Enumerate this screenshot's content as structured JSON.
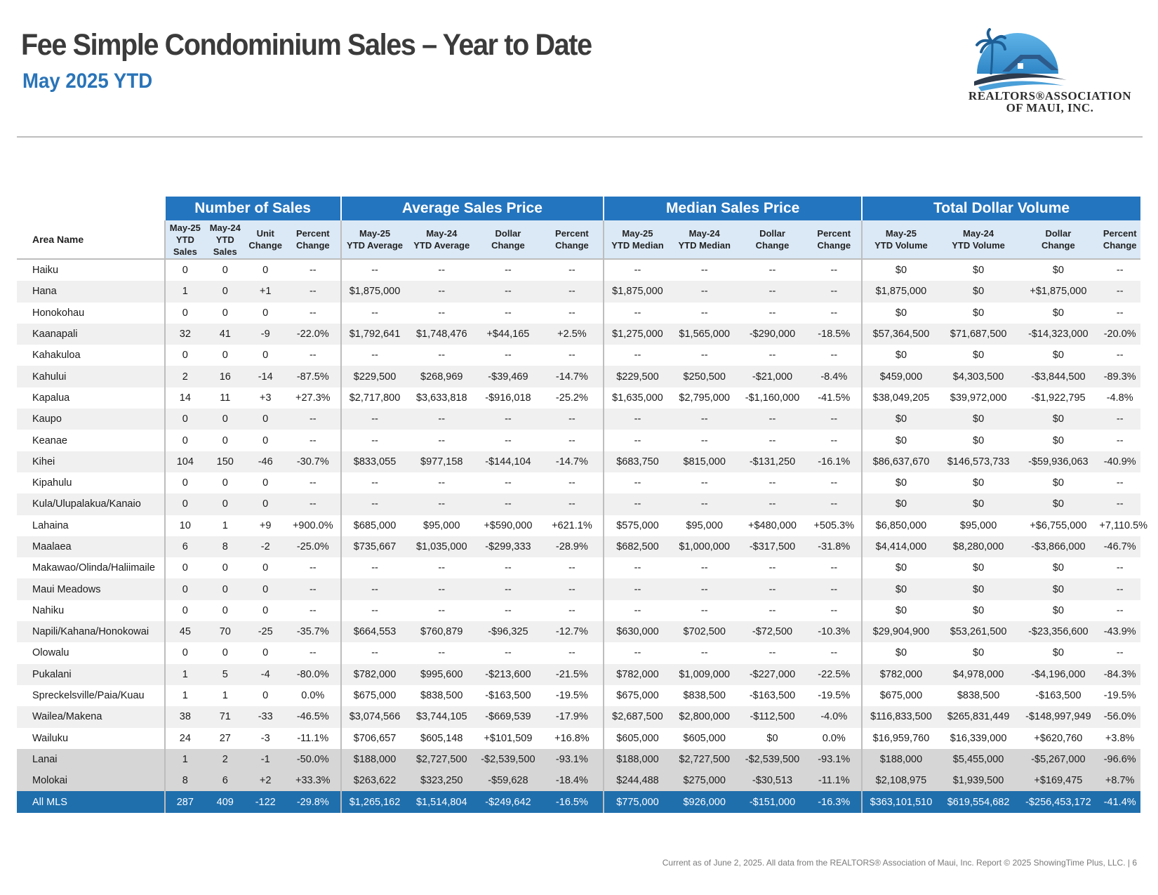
{
  "header": {
    "title": "Fee Simple Condominium Sales – Year to Date",
    "subtitle": "May 2025 YTD"
  },
  "logo": {
    "line1": "REALTORS®ASSOCIATION",
    "line2": "OF MAUI, INC.",
    "colors": {
      "sky": "#4a9fd8",
      "roof": "#2c5b8c",
      "palm": "#1d5f96"
    }
  },
  "table": {
    "groups": [
      "Number of Sales",
      "Average Sales Price",
      "Median Sales Price",
      "Total Dollar Volume"
    ],
    "area_header": "Area Name",
    "columns": [
      "May-25 YTD Sales",
      "May-24 YTD Sales",
      "Unit Change",
      "Percent Change",
      "May-25 YTD Average",
      "May-24 YTD Average",
      "Dollar Change",
      "Percent Change",
      "May-25 YTD Median",
      "May-24 YTD Median",
      "Dollar Change",
      "Percent Change",
      "May-25 YTD Volume",
      "May-24 YTD Volume",
      "Dollar Change",
      "Percent Change"
    ],
    "rows": [
      [
        "Haiku",
        "0",
        "0",
        "0",
        "--",
        "--",
        "--",
        "--",
        "--",
        "--",
        "--",
        "--",
        "--",
        "$0",
        "$0",
        "$0",
        "--"
      ],
      [
        "Hana",
        "1",
        "0",
        "+1",
        "--",
        "$1,875,000",
        "--",
        "--",
        "--",
        "$1,875,000",
        "--",
        "--",
        "--",
        "$1,875,000",
        "$0",
        "+$1,875,000",
        "--"
      ],
      [
        "Honokohau",
        "0",
        "0",
        "0",
        "--",
        "--",
        "--",
        "--",
        "--",
        "--",
        "--",
        "--",
        "--",
        "$0",
        "$0",
        "$0",
        "--"
      ],
      [
        "Kaanapali",
        "32",
        "41",
        "-9",
        "-22.0%",
        "$1,792,641",
        "$1,748,476",
        "+$44,165",
        "+2.5%",
        "$1,275,000",
        "$1,565,000",
        "-$290,000",
        "-18.5%",
        "$57,364,500",
        "$71,687,500",
        "-$14,323,000",
        "-20.0%"
      ],
      [
        "Kahakuloa",
        "0",
        "0",
        "0",
        "--",
        "--",
        "--",
        "--",
        "--",
        "--",
        "--",
        "--",
        "--",
        "$0",
        "$0",
        "$0",
        "--"
      ],
      [
        "Kahului",
        "2",
        "16",
        "-14",
        "-87.5%",
        "$229,500",
        "$268,969",
        "-$39,469",
        "-14.7%",
        "$229,500",
        "$250,500",
        "-$21,000",
        "-8.4%",
        "$459,000",
        "$4,303,500",
        "-$3,844,500",
        "-89.3%"
      ],
      [
        "Kapalua",
        "14",
        "11",
        "+3",
        "+27.3%",
        "$2,717,800",
        "$3,633,818",
        "-$916,018",
        "-25.2%",
        "$1,635,000",
        "$2,795,000",
        "-$1,160,000",
        "-41.5%",
        "$38,049,205",
        "$39,972,000",
        "-$1,922,795",
        "-4.8%"
      ],
      [
        "Kaupo",
        "0",
        "0",
        "0",
        "--",
        "--",
        "--",
        "--",
        "--",
        "--",
        "--",
        "--",
        "--",
        "$0",
        "$0",
        "$0",
        "--"
      ],
      [
        "Keanae",
        "0",
        "0",
        "0",
        "--",
        "--",
        "--",
        "--",
        "--",
        "--",
        "--",
        "--",
        "--",
        "$0",
        "$0",
        "$0",
        "--"
      ],
      [
        "Kihei",
        "104",
        "150",
        "-46",
        "-30.7%",
        "$833,055",
        "$977,158",
        "-$144,104",
        "-14.7%",
        "$683,750",
        "$815,000",
        "-$131,250",
        "-16.1%",
        "$86,637,670",
        "$146,573,733",
        "-$59,936,063",
        "-40.9%"
      ],
      [
        "Kipahulu",
        "0",
        "0",
        "0",
        "--",
        "--",
        "--",
        "--",
        "--",
        "--",
        "--",
        "--",
        "--",
        "$0",
        "$0",
        "$0",
        "--"
      ],
      [
        "Kula/Ulupalakua/Kanaio",
        "0",
        "0",
        "0",
        "--",
        "--",
        "--",
        "--",
        "--",
        "--",
        "--",
        "--",
        "--",
        "$0",
        "$0",
        "$0",
        "--"
      ],
      [
        "Lahaina",
        "10",
        "1",
        "+9",
        "+900.0%",
        "$685,000",
        "$95,000",
        "+$590,000",
        "+621.1%",
        "$575,000",
        "$95,000",
        "+$480,000",
        "+505.3%",
        "$6,850,000",
        "$95,000",
        "+$6,755,000",
        "+7,110.5%"
      ],
      [
        "Maalaea",
        "6",
        "8",
        "-2",
        "-25.0%",
        "$735,667",
        "$1,035,000",
        "-$299,333",
        "-28.9%",
        "$682,500",
        "$1,000,000",
        "-$317,500",
        "-31.8%",
        "$4,414,000",
        "$8,280,000",
        "-$3,866,000",
        "-46.7%"
      ],
      [
        "Makawao/Olinda/Haliimaile",
        "0",
        "0",
        "0",
        "--",
        "--",
        "--",
        "--",
        "--",
        "--",
        "--",
        "--",
        "--",
        "$0",
        "$0",
        "$0",
        "--"
      ],
      [
        "Maui Meadows",
        "0",
        "0",
        "0",
        "--",
        "--",
        "--",
        "--",
        "--",
        "--",
        "--",
        "--",
        "--",
        "$0",
        "$0",
        "$0",
        "--"
      ],
      [
        "Nahiku",
        "0",
        "0",
        "0",
        "--",
        "--",
        "--",
        "--",
        "--",
        "--",
        "--",
        "--",
        "--",
        "$0",
        "$0",
        "$0",
        "--"
      ],
      [
        "Napili/Kahana/Honokowai",
        "45",
        "70",
        "-25",
        "-35.7%",
        "$664,553",
        "$760,879",
        "-$96,325",
        "-12.7%",
        "$630,000",
        "$702,500",
        "-$72,500",
        "-10.3%",
        "$29,904,900",
        "$53,261,500",
        "-$23,356,600",
        "-43.9%"
      ],
      [
        "Olowalu",
        "0",
        "0",
        "0",
        "--",
        "--",
        "--",
        "--",
        "--",
        "--",
        "--",
        "--",
        "--",
        "$0",
        "$0",
        "$0",
        "--"
      ],
      [
        "Pukalani",
        "1",
        "5",
        "-4",
        "-80.0%",
        "$782,000",
        "$995,600",
        "-$213,600",
        "-21.5%",
        "$782,000",
        "$1,009,000",
        "-$227,000",
        "-22.5%",
        "$782,000",
        "$4,978,000",
        "-$4,196,000",
        "-84.3%"
      ],
      [
        "Spreckelsville/Paia/Kuau",
        "1",
        "1",
        "0",
        "0.0%",
        "$675,000",
        "$838,500",
        "-$163,500",
        "-19.5%",
        "$675,000",
        "$838,500",
        "-$163,500",
        "-19.5%",
        "$675,000",
        "$838,500",
        "-$163,500",
        "-19.5%"
      ],
      [
        "Wailea/Makena",
        "38",
        "71",
        "-33",
        "-46.5%",
        "$3,074,566",
        "$3,744,105",
        "-$669,539",
        "-17.9%",
        "$2,687,500",
        "$2,800,000",
        "-$112,500",
        "-4.0%",
        "$116,833,500",
        "$265,831,449",
        "-$148,997,949",
        "-56.0%"
      ],
      [
        "Wailuku",
        "24",
        "27",
        "-3",
        "-11.1%",
        "$706,657",
        "$605,148",
        "+$101,509",
        "+16.8%",
        "$605,000",
        "$605,000",
        "$0",
        "0.0%",
        "$16,959,760",
        "$16,339,000",
        "+$620,760",
        "+3.8%"
      ]
    ],
    "gray_rows": [
      [
        "Lanai",
        "1",
        "2",
        "-1",
        "-50.0%",
        "$188,000",
        "$2,727,500",
        "-$2,539,500",
        "-93.1%",
        "$188,000",
        "$2,727,500",
        "-$2,539,500",
        "-93.1%",
        "$188,000",
        "$5,455,000",
        "-$5,267,000",
        "-96.6%"
      ],
      [
        "Molokai",
        "8",
        "6",
        "+2",
        "+33.3%",
        "$263,622",
        "$323,250",
        "-$59,628",
        "-18.4%",
        "$244,488",
        "$275,000",
        "-$30,513",
        "-11.1%",
        "$2,108,975",
        "$1,939,500",
        "+$169,475",
        "+8.7%"
      ]
    ],
    "total_row": [
      "All MLS",
      "287",
      "409",
      "-122",
      "-29.8%",
      "$1,265,162",
      "$1,514,804",
      "-$249,642",
      "-16.5%",
      "$775,000",
      "$926,000",
      "-$151,000",
      "-16.3%",
      "$363,101,510",
      "$619,554,682",
      "-$256,453,172",
      "-41.4%"
    ]
  },
  "footer": {
    "text": "Current as of June 2, 2025. All data from the REALTORS® Association of Maui, Inc. Report © 2025 ShowingTime Plus, LLC.  |  6"
  }
}
